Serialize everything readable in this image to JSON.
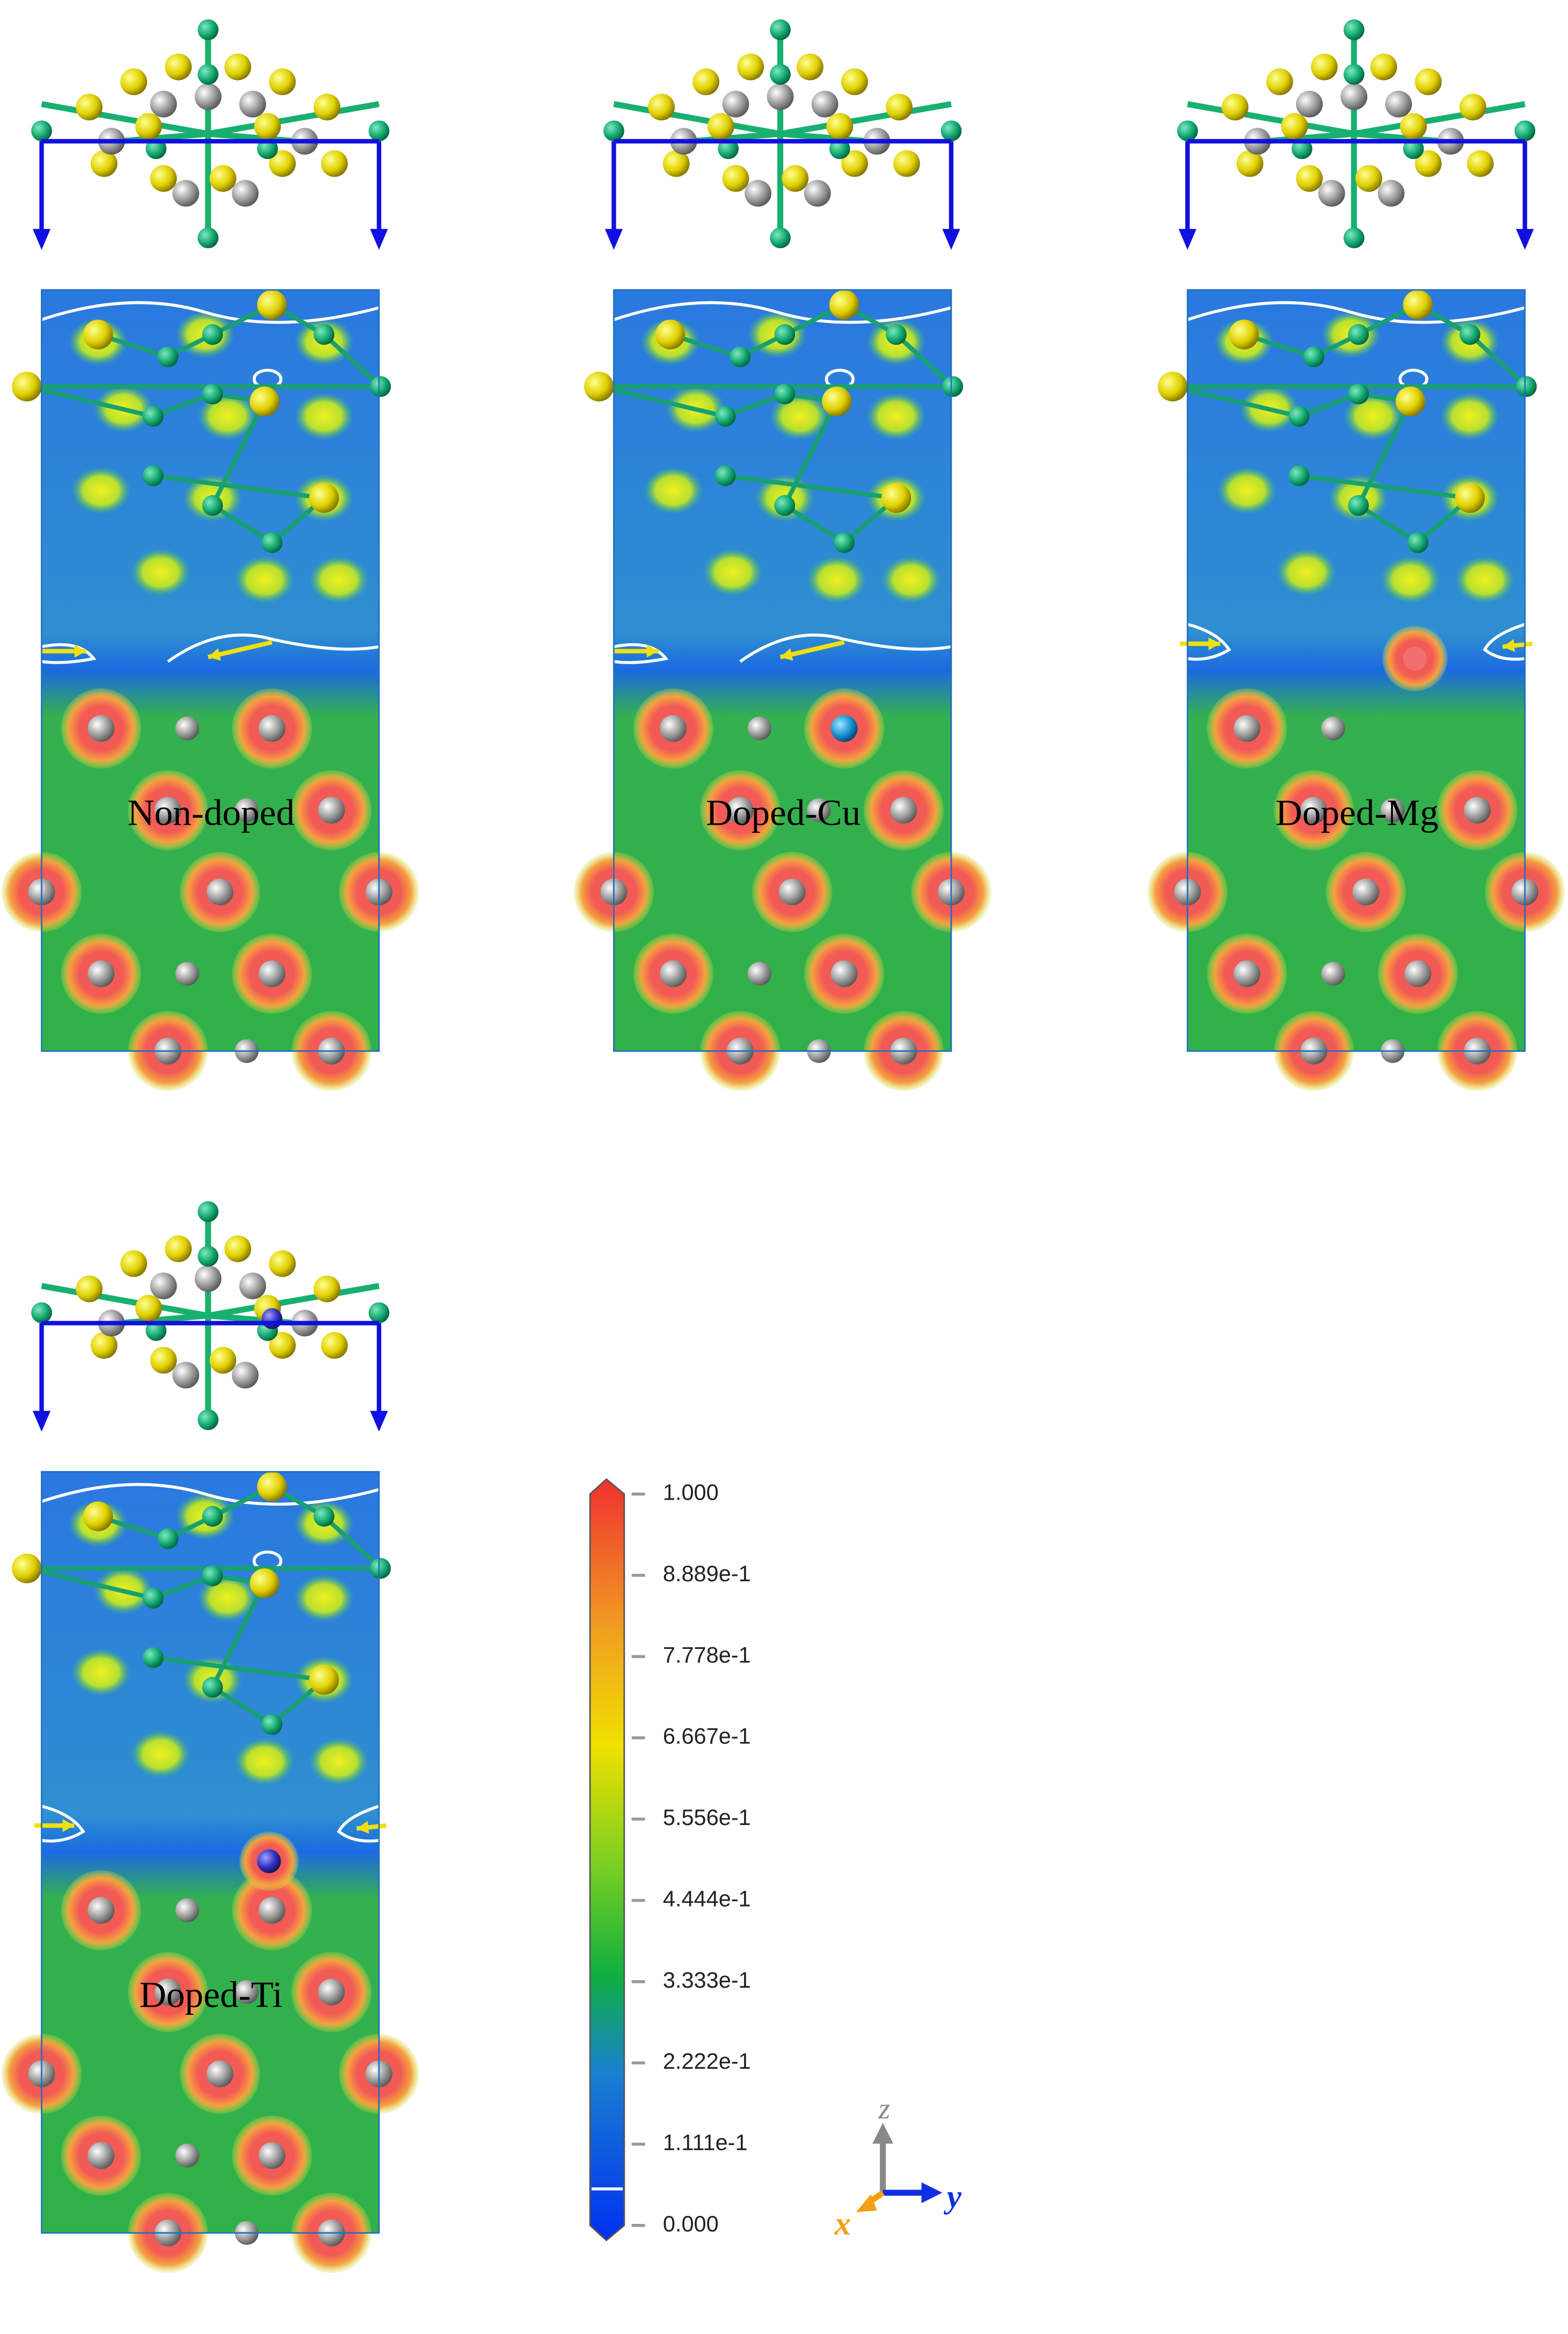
{
  "panels": [
    {
      "label": "Non-doped"
    },
    {
      "label": "Doped-Cu"
    },
    {
      "label": "Doped-Mg"
    },
    {
      "label": "Doped-Ti"
    }
  ],
  "colorbar": {
    "lim": [
      0,
      1
    ],
    "ticks": [
      {
        "value": 1,
        "label": "1.000"
      },
      {
        "value": 0.8889,
        "label": "8.889e-1"
      },
      {
        "value": 0.7778,
        "label": "7.778e-1"
      },
      {
        "value": 0.6667,
        "label": "6.667e-1"
      },
      {
        "value": 0.5556,
        "label": "5.556e-1"
      },
      {
        "value": 0.4444,
        "label": "4.444e-1"
      },
      {
        "value": 0.3333,
        "label": "3.333e-1"
      },
      {
        "value": 0.2222,
        "label": "2.222e-1"
      },
      {
        "value": 0.1111,
        "label": "1.111e-1"
      },
      {
        "value": 0,
        "label": "0.000"
      }
    ]
  },
  "axes": {
    "z": "z",
    "y": "y",
    "x": "x"
  }
}
